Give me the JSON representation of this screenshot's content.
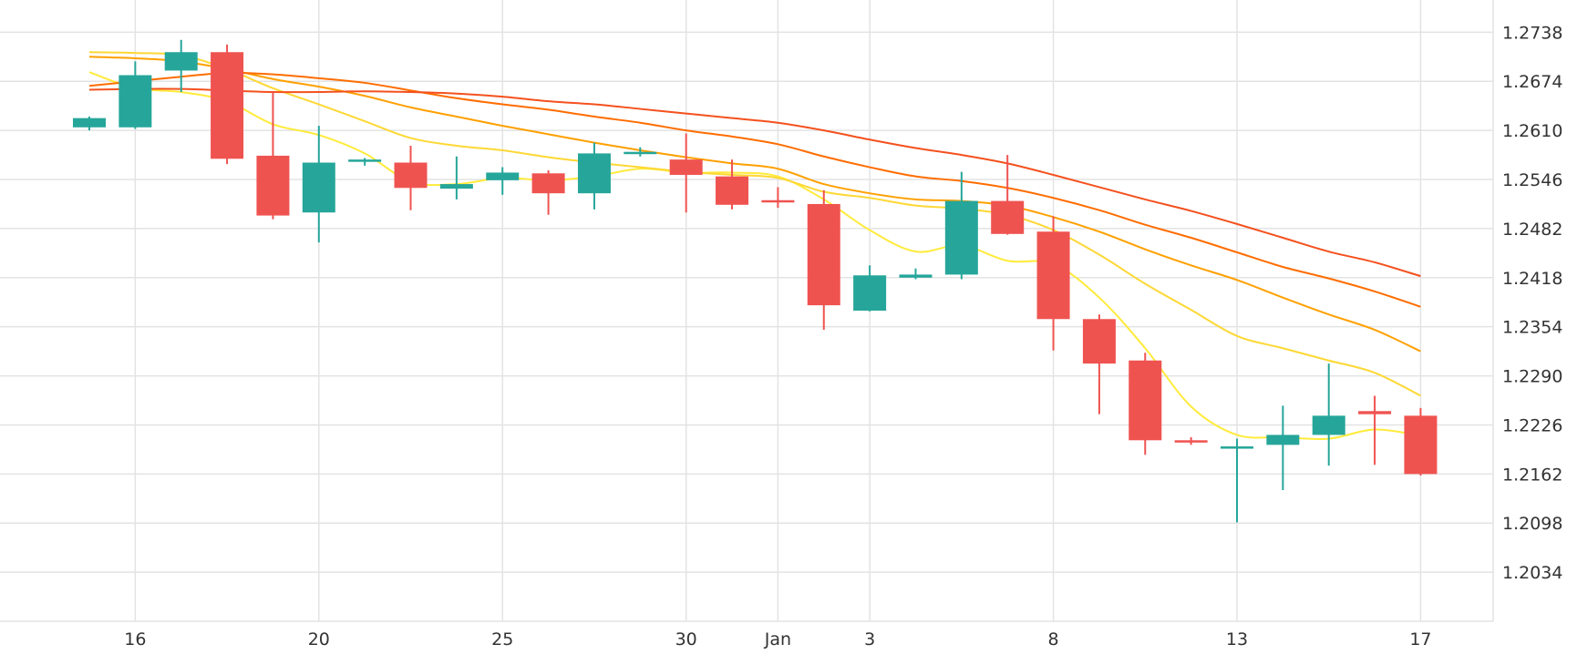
{
  "chart_data": {
    "type": "candlestick",
    "title": "",
    "xlabel": "",
    "ylabel": "",
    "ylim": [
      1.197,
      1.278
    ],
    "grid": true,
    "y_ticks": [
      "1.2034",
      "1.2098",
      "1.2162",
      "1.2226",
      "1.2290",
      "1.2354",
      "1.2418",
      "1.2482",
      "1.2546",
      "1.2610",
      "1.2674",
      "1.2738"
    ],
    "x_ticks": [
      {
        "label": "16",
        "index": 1
      },
      {
        "label": "20",
        "index": 5
      },
      {
        "label": "25",
        "index": 9
      },
      {
        "label": "30",
        "index": 13
      },
      {
        "label": "Jan",
        "index": 15
      },
      {
        "label": "3",
        "index": 17
      },
      {
        "label": "8",
        "index": 21
      },
      {
        "label": "13",
        "index": 25
      },
      {
        "label": "17",
        "index": 29
      }
    ],
    "candles": [
      {
        "o": 1.2614,
        "h": 1.2628,
        "l": 1.261,
        "c": 1.2626
      },
      {
        "o": 1.2614,
        "h": 1.27,
        "l": 1.2612,
        "c": 1.2682
      },
      {
        "o": 1.2688,
        "h": 1.2728,
        "l": 1.266,
        "c": 1.2712
      },
      {
        "o": 1.2712,
        "h": 1.2722,
        "l": 1.2566,
        "c": 1.2573
      },
      {
        "o": 1.2577,
        "h": 1.266,
        "l": 1.2494,
        "c": 1.2499
      },
      {
        "o": 1.2503,
        "h": 1.2616,
        "l": 1.2464,
        "c": 1.2568
      },
      {
        "o": 1.2569,
        "h": 1.2574,
        "l": 1.2564,
        "c": 1.2572
      },
      {
        "o": 1.2568,
        "h": 1.259,
        "l": 1.2506,
        "c": 1.2535
      },
      {
        "o": 1.2534,
        "h": 1.2576,
        "l": 1.252,
        "c": 1.254
      },
      {
        "o": 1.2545,
        "h": 1.2562,
        "l": 1.2526,
        "c": 1.2555
      },
      {
        "o": 1.2554,
        "h": 1.2558,
        "l": 1.25,
        "c": 1.2528
      },
      {
        "o": 1.2528,
        "h": 1.2594,
        "l": 1.2507,
        "c": 1.258
      },
      {
        "o": 1.258,
        "h": 1.2588,
        "l": 1.2576,
        "c": 1.2582
      },
      {
        "o": 1.2572,
        "h": 1.2606,
        "l": 1.2503,
        "c": 1.2552
      },
      {
        "o": 1.255,
        "h": 1.2572,
        "l": 1.2507,
        "c": 1.2513
      },
      {
        "o": 1.2519,
        "h": 1.2536,
        "l": 1.2509,
        "c": 1.2517
      },
      {
        "o": 1.2514,
        "h": 1.2532,
        "l": 1.235,
        "c": 1.2382
      },
      {
        "o": 1.2375,
        "h": 1.2434,
        "l": 1.2374,
        "c": 1.2421
      },
      {
        "o": 1.2418,
        "h": 1.243,
        "l": 1.2416,
        "c": 1.2422
      },
      {
        "o": 1.2422,
        "h": 1.2556,
        "l": 1.2416,
        "c": 1.2518
      },
      {
        "o": 1.2518,
        "h": 1.2578,
        "l": 1.2474,
        "c": 1.2475
      },
      {
        "o": 1.2478,
        "h": 1.2498,
        "l": 1.2323,
        "c": 1.2364
      },
      {
        "o": 1.2364,
        "h": 1.237,
        "l": 1.224,
        "c": 1.2306
      },
      {
        "o": 1.231,
        "h": 1.232,
        "l": 1.2187,
        "c": 1.2206
      },
      {
        "o": 1.2206,
        "h": 1.221,
        "l": 1.22,
        "c": 1.2203
      },
      {
        "o": 1.2195,
        "h": 1.2208,
        "l": 1.2099,
        "c": 1.2198
      },
      {
        "o": 1.22,
        "h": 1.2251,
        "l": 1.2141,
        "c": 1.2213
      },
      {
        "o": 1.2213,
        "h": 1.2306,
        "l": 1.2173,
        "c": 1.2238
      },
      {
        "o": 1.2244,
        "h": 1.2264,
        "l": 1.2174,
        "c": 1.224
      },
      {
        "o": 1.2238,
        "h": 1.2248,
        "l": 1.216,
        "c": 1.2162
      }
    ],
    "series": [
      {
        "color": "#ffeb3b",
        "x": [
          0,
          1,
          2,
          3,
          4,
          5,
          6,
          7,
          8,
          9,
          10,
          11,
          12,
          13,
          14,
          15,
          16,
          17,
          18,
          19,
          20,
          21,
          22,
          23,
          24,
          25,
          26,
          27,
          28,
          29
        ],
        "values": [
          1.2686,
          1.2665,
          1.266,
          1.2648,
          1.2618,
          1.2604,
          1.258,
          1.2543,
          1.254,
          1.2548,
          1.2545,
          1.255,
          1.256,
          1.2555,
          1.2555,
          1.255,
          1.252,
          1.248,
          1.2452,
          1.246,
          1.244,
          1.2436,
          1.2392,
          1.2326,
          1.225,
          1.2213,
          1.221,
          1.2208,
          1.222,
          1.2212
        ]
      },
      {
        "color": "#fdd835",
        "x": [
          0,
          1,
          2,
          3,
          4,
          5,
          6,
          7,
          8,
          9,
          10,
          11,
          12,
          13,
          14,
          15,
          16,
          17,
          18,
          19,
          20,
          21,
          22,
          23,
          24,
          25,
          26,
          27,
          28,
          29
        ],
        "values": [
          1.2712,
          1.2711,
          1.2708,
          1.269,
          1.2665,
          1.2644,
          1.2622,
          1.26,
          1.259,
          1.2584,
          1.2575,
          1.2568,
          1.2562,
          1.2556,
          1.2552,
          1.2548,
          1.253,
          1.2522,
          1.2512,
          1.2508,
          1.25,
          1.248,
          1.2448,
          1.241,
          1.2376,
          1.2342,
          1.2326,
          1.231,
          1.2294,
          1.2264
        ]
      },
      {
        "color": "#ffa000",
        "x": [
          0,
          1,
          2,
          3,
          4,
          5,
          6,
          7,
          8,
          9,
          10,
          11,
          12,
          13,
          14,
          15,
          16,
          17,
          18,
          19,
          20,
          21,
          22,
          23,
          24,
          25,
          26,
          27,
          28,
          29
        ],
        "values": [
          1.2706,
          1.2704,
          1.27,
          1.269,
          1.2677,
          1.2667,
          1.2655,
          1.264,
          1.2628,
          1.2616,
          1.2605,
          1.2594,
          1.2584,
          1.2575,
          1.2567,
          1.256,
          1.254,
          1.2528,
          1.252,
          1.2518,
          1.2512,
          1.2497,
          1.2478,
          1.2455,
          1.2434,
          1.2415,
          1.2392,
          1.237,
          1.235,
          1.2322
        ]
      },
      {
        "color": "#ff6d00",
        "x": [
          0,
          1,
          2,
          3,
          4,
          5,
          6,
          7,
          8,
          9,
          10,
          11,
          12,
          13,
          14,
          15,
          16,
          17,
          18,
          19,
          20,
          21,
          22,
          23,
          24,
          25,
          26,
          27,
          28,
          29
        ],
        "values": [
          1.2668,
          1.2674,
          1.268,
          1.2685,
          1.2683,
          1.2678,
          1.2672,
          1.2662,
          1.2652,
          1.2644,
          1.2637,
          1.2628,
          1.262,
          1.261,
          1.2602,
          1.2592,
          1.2576,
          1.2562,
          1.255,
          1.2544,
          1.2535,
          1.2522,
          1.2506,
          1.2487,
          1.247,
          1.2451,
          1.2432,
          1.2417,
          1.24,
          1.238
        ]
      },
      {
        "color": "#f4511e",
        "x": [
          0,
          1,
          2,
          3,
          4,
          5,
          6,
          7,
          8,
          9,
          10,
          11,
          12,
          13,
          14,
          15,
          16,
          17,
          18,
          19,
          20,
          21,
          22,
          23,
          24,
          25,
          26,
          27,
          28,
          29
        ],
        "values": [
          1.2663,
          1.2664,
          1.2664,
          1.2662,
          1.266,
          1.266,
          1.2661,
          1.266,
          1.2658,
          1.2654,
          1.2648,
          1.2644,
          1.2638,
          1.2632,
          1.2626,
          1.262,
          1.261,
          1.2598,
          1.2587,
          1.2578,
          1.2567,
          1.2552,
          1.2536,
          1.252,
          1.2505,
          1.2488,
          1.247,
          1.2452,
          1.2438,
          1.242
        ]
      }
    ],
    "colors": {
      "up": "#26a69a",
      "down": "#ef5350",
      "grid": "#e3e3e3",
      "axis_text": "#333333"
    }
  }
}
